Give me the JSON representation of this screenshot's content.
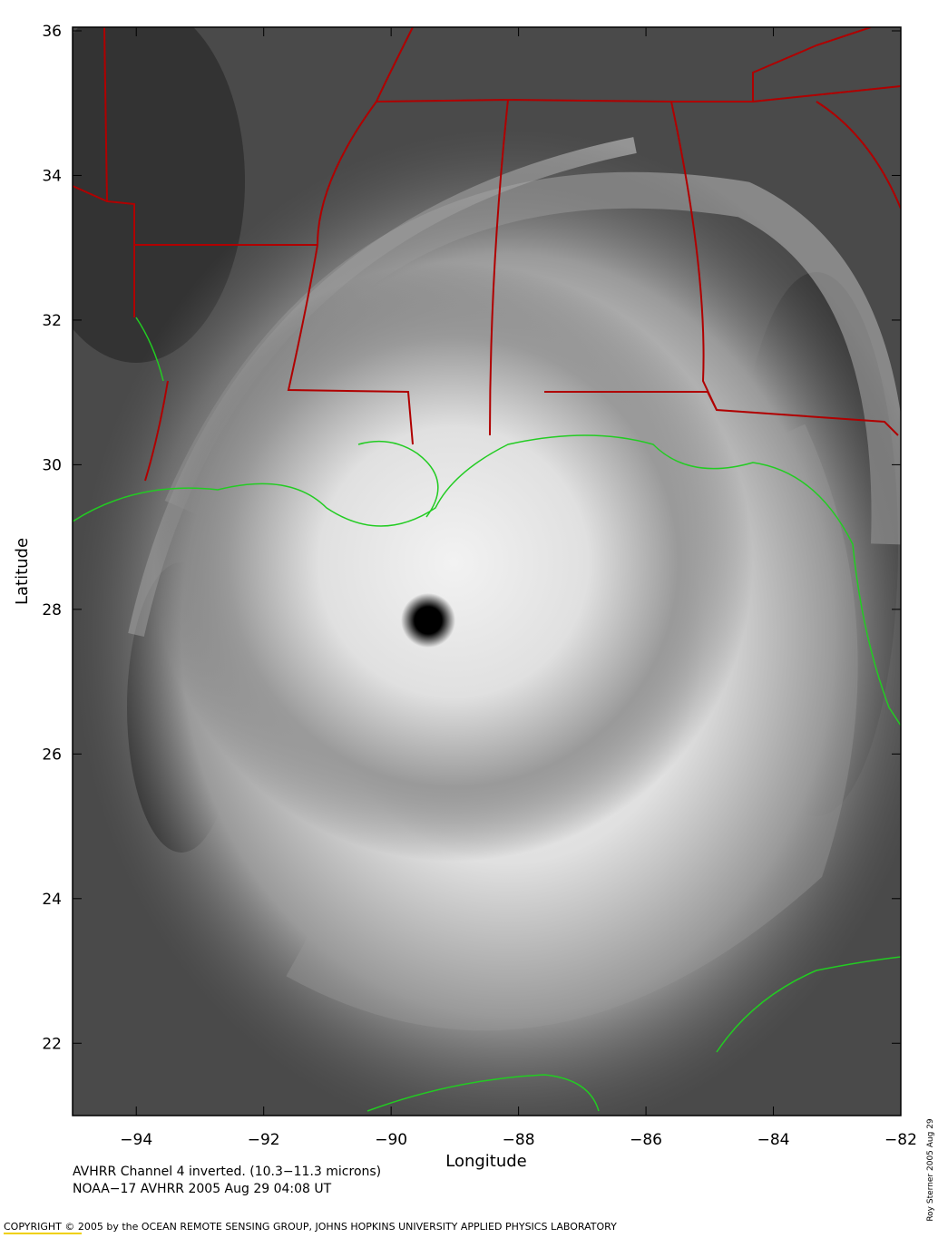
{
  "map": {
    "x_label": "Longitude",
    "y_label": "Latitude",
    "xlim": [
      -95,
      -82
    ],
    "ylim": [
      21,
      36.05
    ],
    "xticks": [
      {
        "value": -94,
        "label": "−94"
      },
      {
        "value": -92,
        "label": "−92"
      },
      {
        "value": -90,
        "label": "−90"
      },
      {
        "value": -88,
        "label": "−88"
      },
      {
        "value": -86,
        "label": "−86"
      },
      {
        "value": -84,
        "label": "−84"
      },
      {
        "value": -82,
        "label": "−82"
      }
    ],
    "yticks": [
      22,
      24,
      26,
      28,
      30,
      32,
      34,
      36
    ],
    "caption_line1": "AVHRR Channel 4 inverted. (10.3−11.3 microns)",
    "caption_line2": "NOAA−17 AVHRR 2005 Aug 29 04:08 UT",
    "copyright": "COPYRIGHT © 2005 by the OCEAN REMOTE SENSING GROUP, JOHNS HOPKINS UNIVERSITY APPLIED PHYSICS LABORATORY",
    "credit": "Roy Sterner 2005 Aug 29"
  }
}
